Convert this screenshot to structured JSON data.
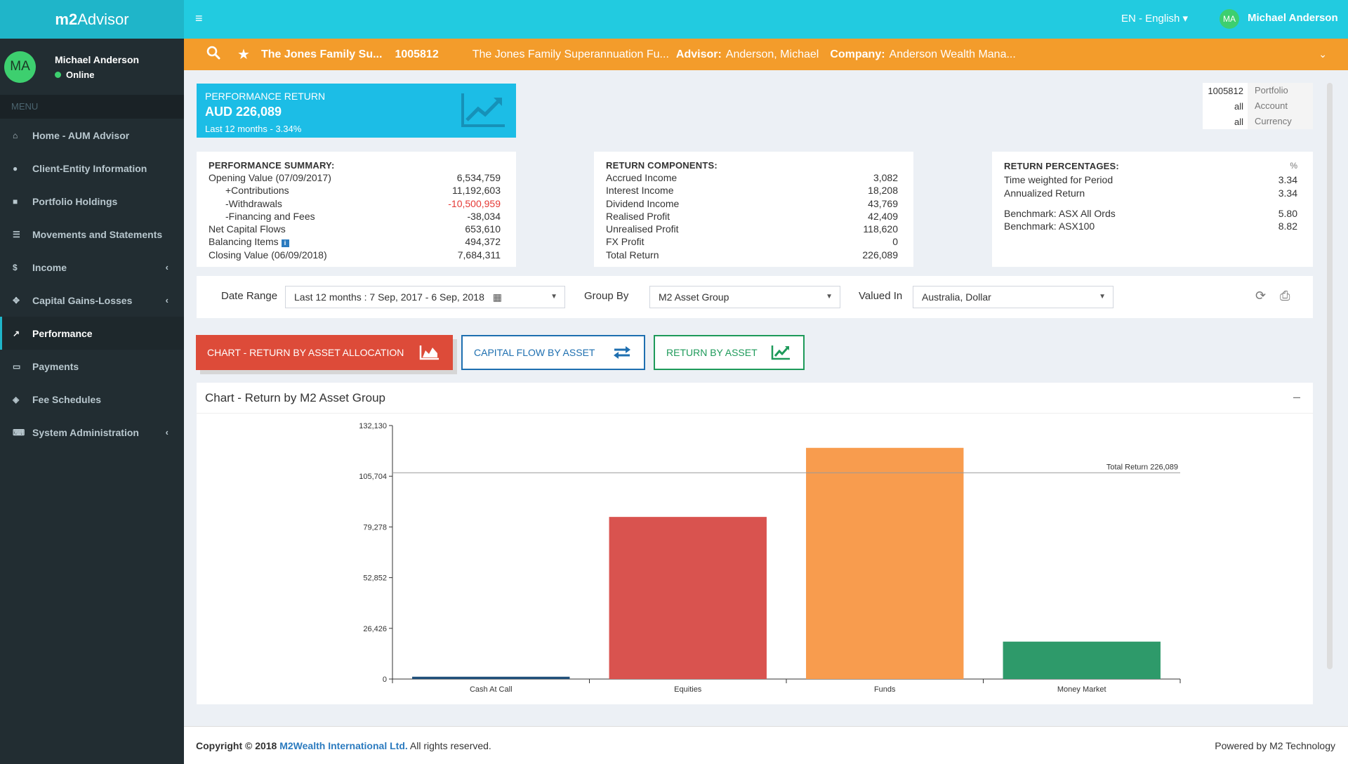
{
  "sidebar": {
    "brand_bold": "m2",
    "brand_rest": "Advisor",
    "user": {
      "initials": "MA",
      "name": "Michael Anderson",
      "status": "Online"
    },
    "menu_header": "MENU",
    "items": [
      {
        "label": "Home - AUM Advisor",
        "icon": "home-icon"
      },
      {
        "label": "Client-Entity Information",
        "icon": "user-icon"
      },
      {
        "label": "Portfolio Holdings",
        "icon": "briefcase-icon"
      },
      {
        "label": "Movements and Statements",
        "icon": "list-icon"
      },
      {
        "label": "Income",
        "icon": "dollar-icon"
      },
      {
        "label": "Capital Gains-Losses",
        "icon": "move-icon"
      },
      {
        "label": "Performance",
        "icon": "line-chart-icon"
      },
      {
        "label": "Payments",
        "icon": "credit-card-icon"
      },
      {
        "label": "Fee Schedules",
        "icon": "tag-icon"
      },
      {
        "label": "System Administration",
        "icon": "keyboard-icon"
      }
    ]
  },
  "topbar": {
    "language": "EN - English",
    "user_initials": "MA",
    "user_name": "Michael Anderson"
  },
  "client_bar": {
    "fund_short": "The Jones Family Su...",
    "account_no": "1005812",
    "fund_long": "The Jones Family Superannuation Fu...",
    "advisor_label": "Advisor:",
    "advisor_value": "Anderson, Michael",
    "company_label": "Company:",
    "company_value": "Anderson Wealth Mana..."
  },
  "perf_box": {
    "title": "PERFORMANCE RETURN",
    "amount": "AUD 226,089",
    "period": "Last 12 months - 3.34%"
  },
  "selection": [
    {
      "value": "1005812",
      "key": "Portfolio"
    },
    {
      "value": "all",
      "key": "Account"
    },
    {
      "value": "all",
      "key": "Currency"
    }
  ],
  "summary": {
    "title": "PERFORMANCE SUMMARY:",
    "rows": [
      {
        "label": "Opening Value (07/09/2017)",
        "value": "6,534,759"
      },
      {
        "label": "+Contributions",
        "value": "11,192,603"
      },
      {
        "label": "-Withdrawals",
        "value": "-10,500,959"
      },
      {
        "label": "-Financing and Fees",
        "value": "-38,034"
      },
      {
        "label": "Net Capital Flows",
        "value": "653,610"
      },
      {
        "label": "Balancing Items",
        "value": "494,372"
      },
      {
        "label": "Closing Value (06/09/2018)",
        "value": "7,684,311"
      }
    ]
  },
  "components": {
    "title": "RETURN COMPONENTS:",
    "rows": [
      {
        "label": "Accrued Income",
        "value": "3,082"
      },
      {
        "label": "Interest Income",
        "value": "18,208"
      },
      {
        "label": "Dividend Income",
        "value": "43,769"
      },
      {
        "label": "Realised Profit",
        "value": "42,409"
      },
      {
        "label": "Unrealised Profit",
        "value": "118,620"
      },
      {
        "label": "FX Profit",
        "value": "0"
      },
      {
        "label": "Total Return",
        "value": "226,089"
      }
    ]
  },
  "percentages": {
    "title": "RETURN PERCENTAGES:",
    "unit": "%",
    "rows": [
      {
        "label": "Time weighted for Period",
        "value": "3.34"
      },
      {
        "label": "Annualized Return",
        "value": "3.34"
      }
    ],
    "bench": [
      {
        "label": "Benchmark: ASX All Ords",
        "value": "5.80"
      },
      {
        "label": "Benchmark: ASX100",
        "value": "8.82"
      }
    ]
  },
  "filters": {
    "date_range_label": "Date Range",
    "date_range_value": "Last 12 months :  7 Sep, 2017 - 6 Sep, 2018",
    "group_by_label": "Group By",
    "group_by_value": "M2 Asset Group",
    "valued_in_label": "Valued In",
    "valued_in_value": "Australia, Dollar"
  },
  "buttons": {
    "chart_return": "CHART - RETURN BY ASSET ALLOCATION",
    "capital_flow": "CAPITAL FLOW BY ASSET",
    "return_by_asset": "RETURN BY ASSET"
  },
  "chart_title": "Chart - Return by M2 Asset Group",
  "chart_data": {
    "type": "bar",
    "categories": [
      "Cash At Call",
      "Equities",
      "Funds",
      "Money Market"
    ],
    "values": [
      1200,
      84500,
      120500,
      19500
    ],
    "colors": [
      "#1f4e79",
      "#d9534f",
      "#f89c4e",
      "#2e9a6a"
    ],
    "yticks": [
      "0",
      "26,426",
      "52,852",
      "79,278",
      "105,704",
      "132,130"
    ],
    "ylim": [
      0,
      132130
    ],
    "reference_line": {
      "value": 107500,
      "label": "Total Return 226,089"
    }
  },
  "footer": {
    "copyright_prefix": "Copyright © 2018",
    "company": "M2Wealth International Ltd.",
    "rights": "All rights reserved.",
    "powered": "Powered by M2 Technology"
  }
}
